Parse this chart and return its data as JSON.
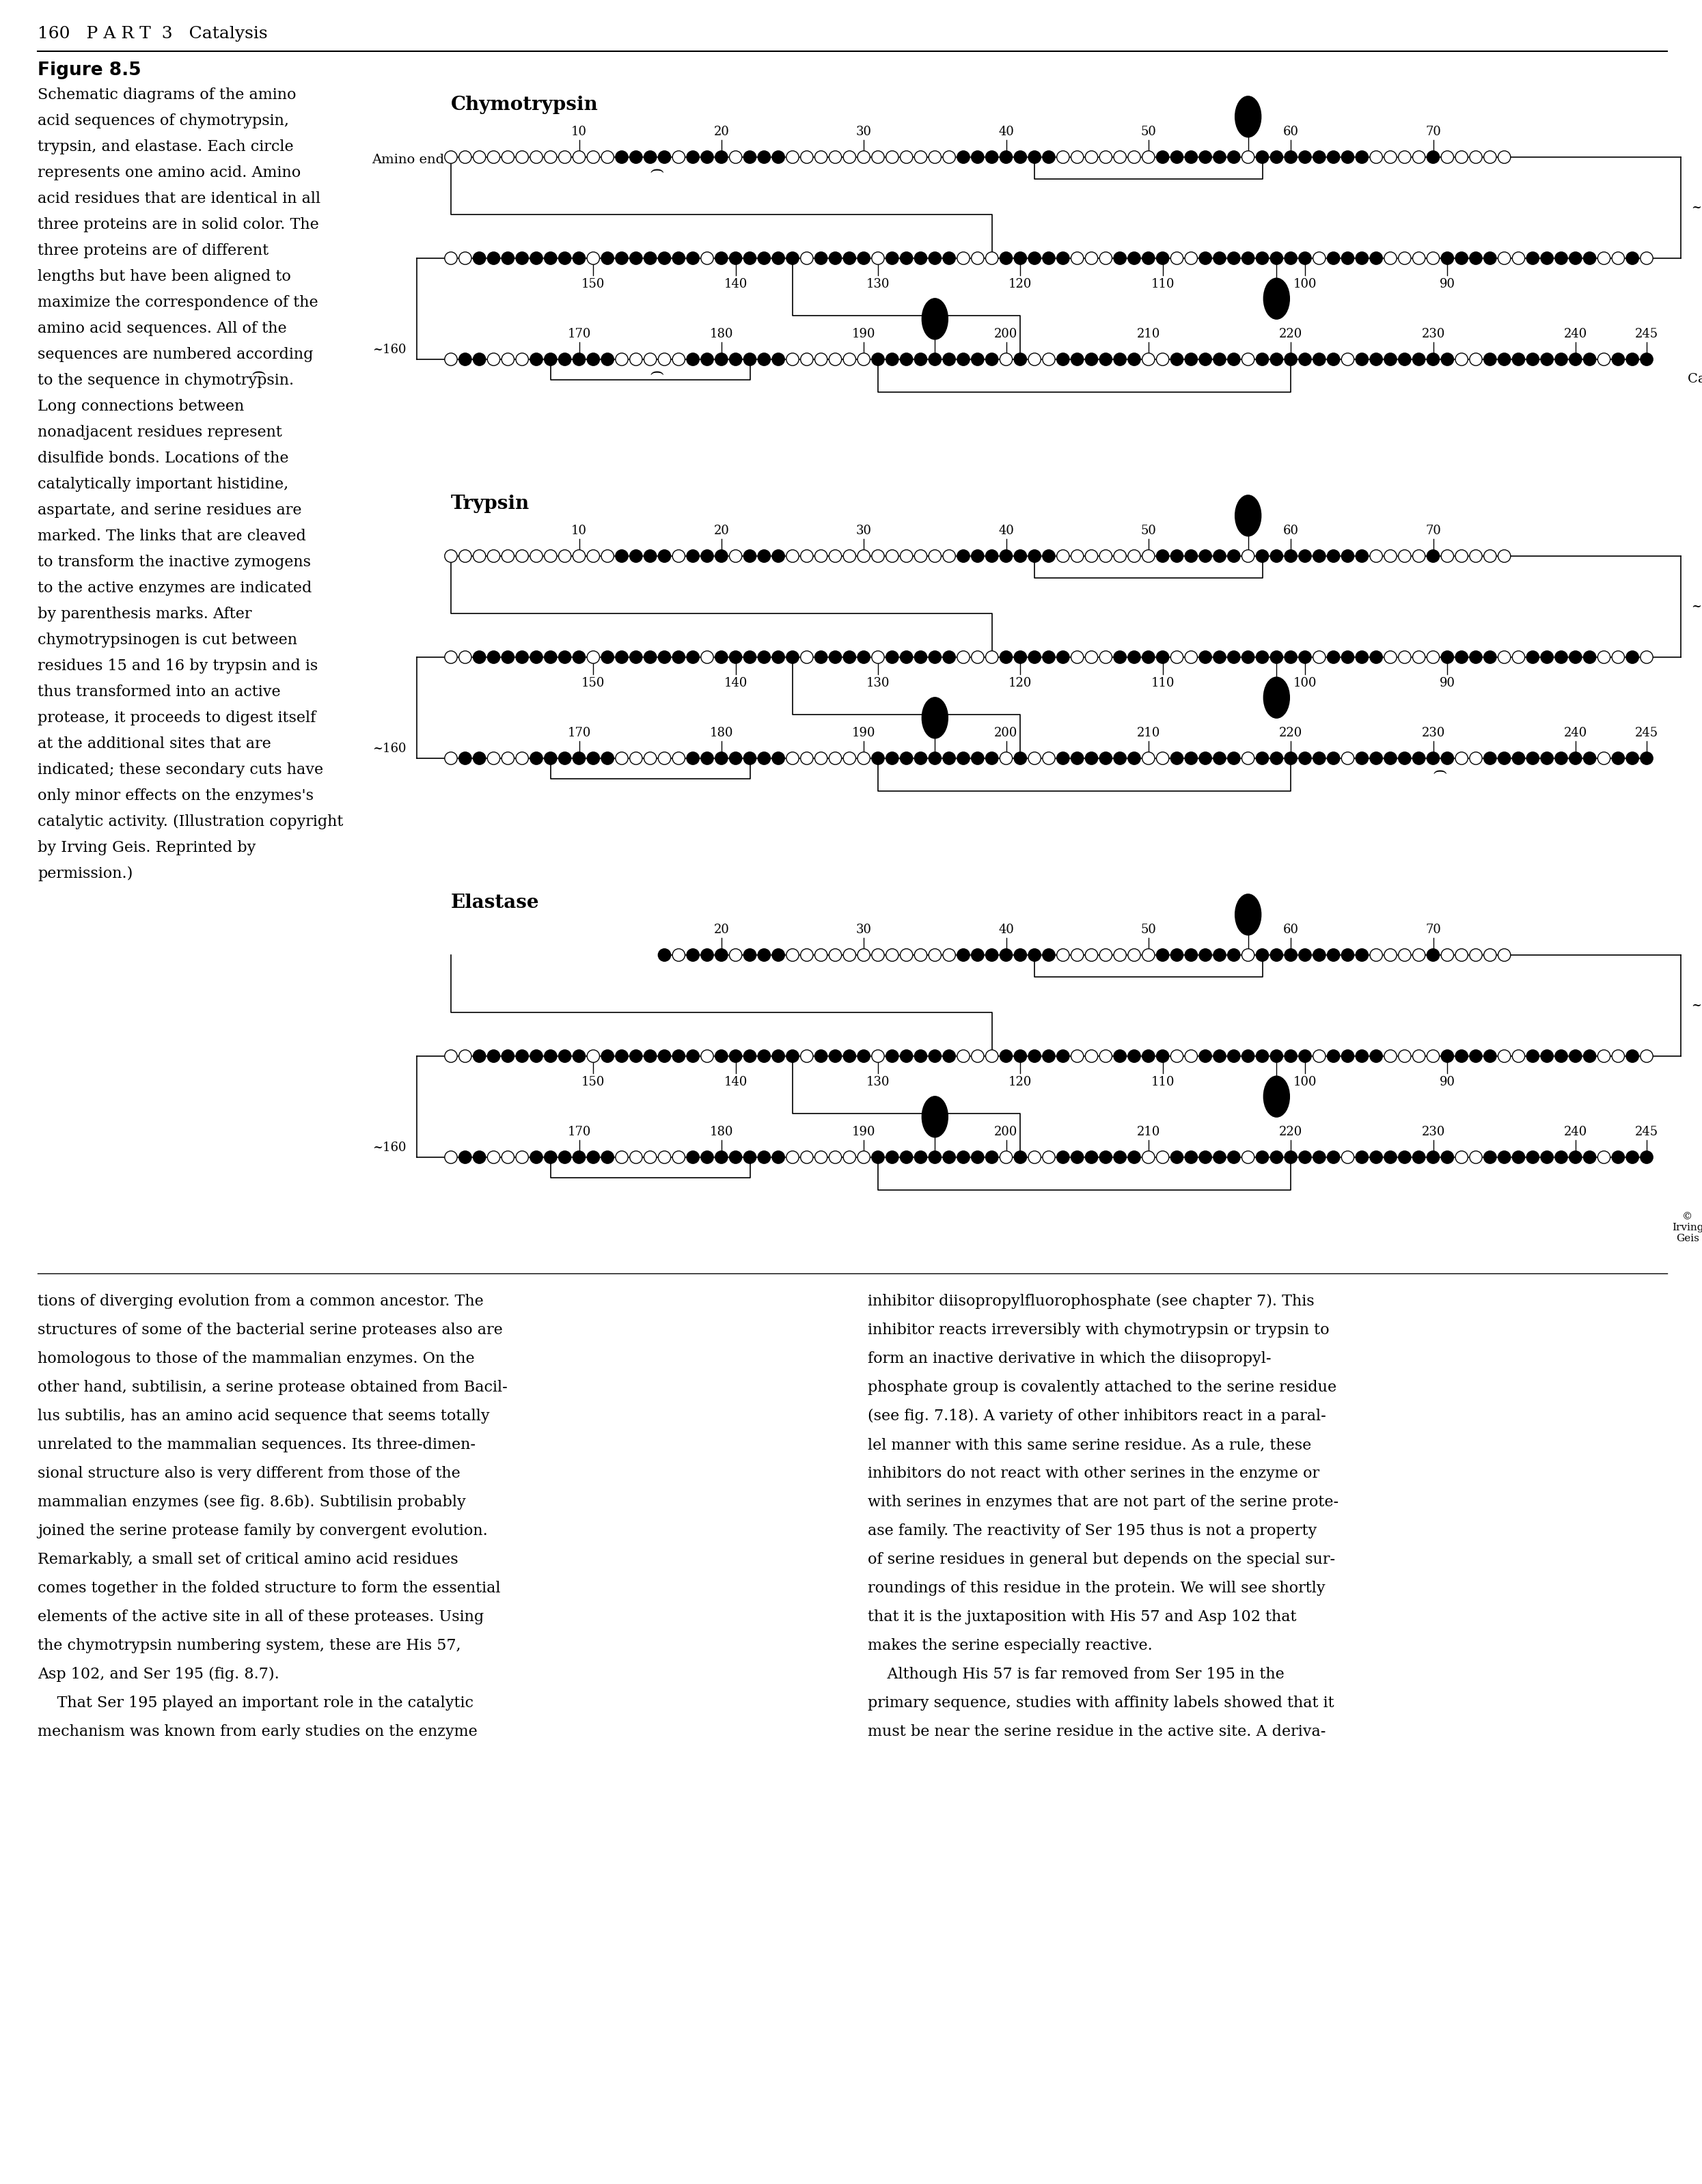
{
  "background_color": "#ffffff",
  "page_header": "160   P A R T  3   Catalysis",
  "figure_label": "Figure 8.5",
  "caption_lines": [
    "Schematic diagrams of the amino",
    "acid sequences of chymotrypsin,",
    "trypsin, and elastase. Each circle",
    "represents one amino acid. Amino",
    "acid residues that are identical in all",
    "three proteins are in solid color. The",
    "three proteins are of different",
    "lengths but have been aligned to",
    "maximize the correspondence of the",
    "amino acid sequences. All of the",
    "sequences are numbered according",
    "to the sequence in chymotrypsin.",
    "Long connections between",
    "nonadjacent residues represent",
    "disulfide bonds. Locations of the",
    "catalytically important histidine,",
    "aspartate, and serine residues are",
    "marked. The links that are cleaved",
    "to transform the inactive zymogens",
    "to the active enzymes are indicated",
    "by parenthesis marks. After",
    "chymotrypsinogen is cut between",
    "residues 15 and 16 by trypsin and is",
    "thus transformed into an active",
    "protease, it proceeds to digest itself",
    "at the additional sites that are",
    "indicated; these secondary cuts have",
    "only minor effects on the enzymes's",
    "catalytic activity. (Illustration copyright",
    "by Irving Geis. Reprinted by",
    "permission.)"
  ],
  "bottom_left_lines": [
    "tions of diverging evolution from a common ancestor. The",
    "structures of some of the bacterial serine proteases also are",
    "homologous to those of the mammalian enzymes. On the",
    "other hand, subtilisin, a serine protease obtained from Bacil-",
    "lus subtilis, has an amino acid sequence that seems totally",
    "unrelated to the mammalian sequences. Its three-dimen-",
    "sional structure also is very different from those of the",
    "mammalian enzymes (see fig. 8.6b). Subtilisin probably",
    "joined the serine protease family by convergent evolution.",
    "Remarkably, a small set of critical amino acid residues",
    "comes together in the folded structure to form the essential",
    "elements of the active site in all of these proteases. Using",
    "the chymotrypsin numbering system, these are His 57,",
    "Asp 102, and Ser 195 (fig. 8.7).",
    "    That Ser 195 played an important role in the catalytic",
    "mechanism was known from early studies on the enzyme"
  ],
  "bottom_right_lines": [
    "inhibitor diisopropylfluorophosphate (see chapter 7). This",
    "inhibitor reacts irreversibly with chymotrypsin or trypsin to",
    "form an inactive derivative in which the diisopropyl-",
    "phosphate group is covalently attached to the serine residue",
    "(see fig. 7.18). A variety of other inhibitors react in a paral-",
    "lel manner with this same serine residue. As a rule, these",
    "inhibitors do not react with other serines in the enzyme or",
    "with serines in enzymes that are not part of the serine prote-",
    "ase family. The reactivity of Ser 195 thus is not a property",
    "of serine residues in general but depends on the special sur-",
    "roundings of this residue in the protein. We will see shortly",
    "that it is the juxtaposition with His 57 and Asp 102 that",
    "makes the serine especially reactive.",
    "    Although His 57 is far removed from Ser 195 in the",
    "primary sequence, studies with affinity labels showed that it",
    "must be near the serine residue in the active site. A deriva-"
  ]
}
